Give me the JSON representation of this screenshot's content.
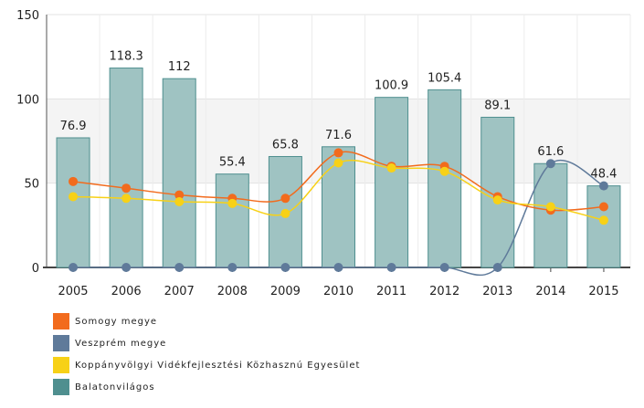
{
  "chart_data": {
    "type": "bar",
    "categories": [
      "2005",
      "2006",
      "2007",
      "2008",
      "2009",
      "2010",
      "2011",
      "2012",
      "2013",
      "2014",
      "2015"
    ],
    "ylim": [
      0,
      150
    ],
    "yticks": [
      0,
      50,
      100,
      150
    ],
    "grid": "horizontal bands",
    "legend_position": "bottom-left",
    "series": [
      {
        "name": "Somogy megye",
        "type": "line",
        "color": "#f26b1d",
        "values": [
          51,
          47,
          43,
          41,
          41,
          68,
          60,
          60,
          42,
          34,
          36
        ]
      },
      {
        "name": "Veszprém megye",
        "type": "line",
        "color": "#5f7a9a",
        "values": [
          0,
          0,
          0,
          0,
          0,
          0,
          0,
          0,
          0,
          61.6,
          48.4
        ]
      },
      {
        "name": "Koppányvölgyi Vidékfejlesztési Közhasznú Egyesület",
        "type": "line",
        "color": "#f7d117",
        "values": [
          42,
          41,
          39,
          38,
          32,
          62,
          59,
          57,
          40,
          36,
          28
        ]
      },
      {
        "name": "Balatonvilágos",
        "type": "bar",
        "color": "#4f8f8f",
        "values": [
          76.9,
          118.3,
          112,
          55.4,
          65.8,
          71.6,
          100.9,
          105.4,
          89.1,
          61.6,
          48.4
        ],
        "labels": [
          "76.9",
          "118.3",
          "112",
          "55.4",
          "65.8",
          "71.6",
          "100.9",
          "105.4",
          "89.1",
          "61.6",
          "48.4"
        ]
      }
    ]
  }
}
